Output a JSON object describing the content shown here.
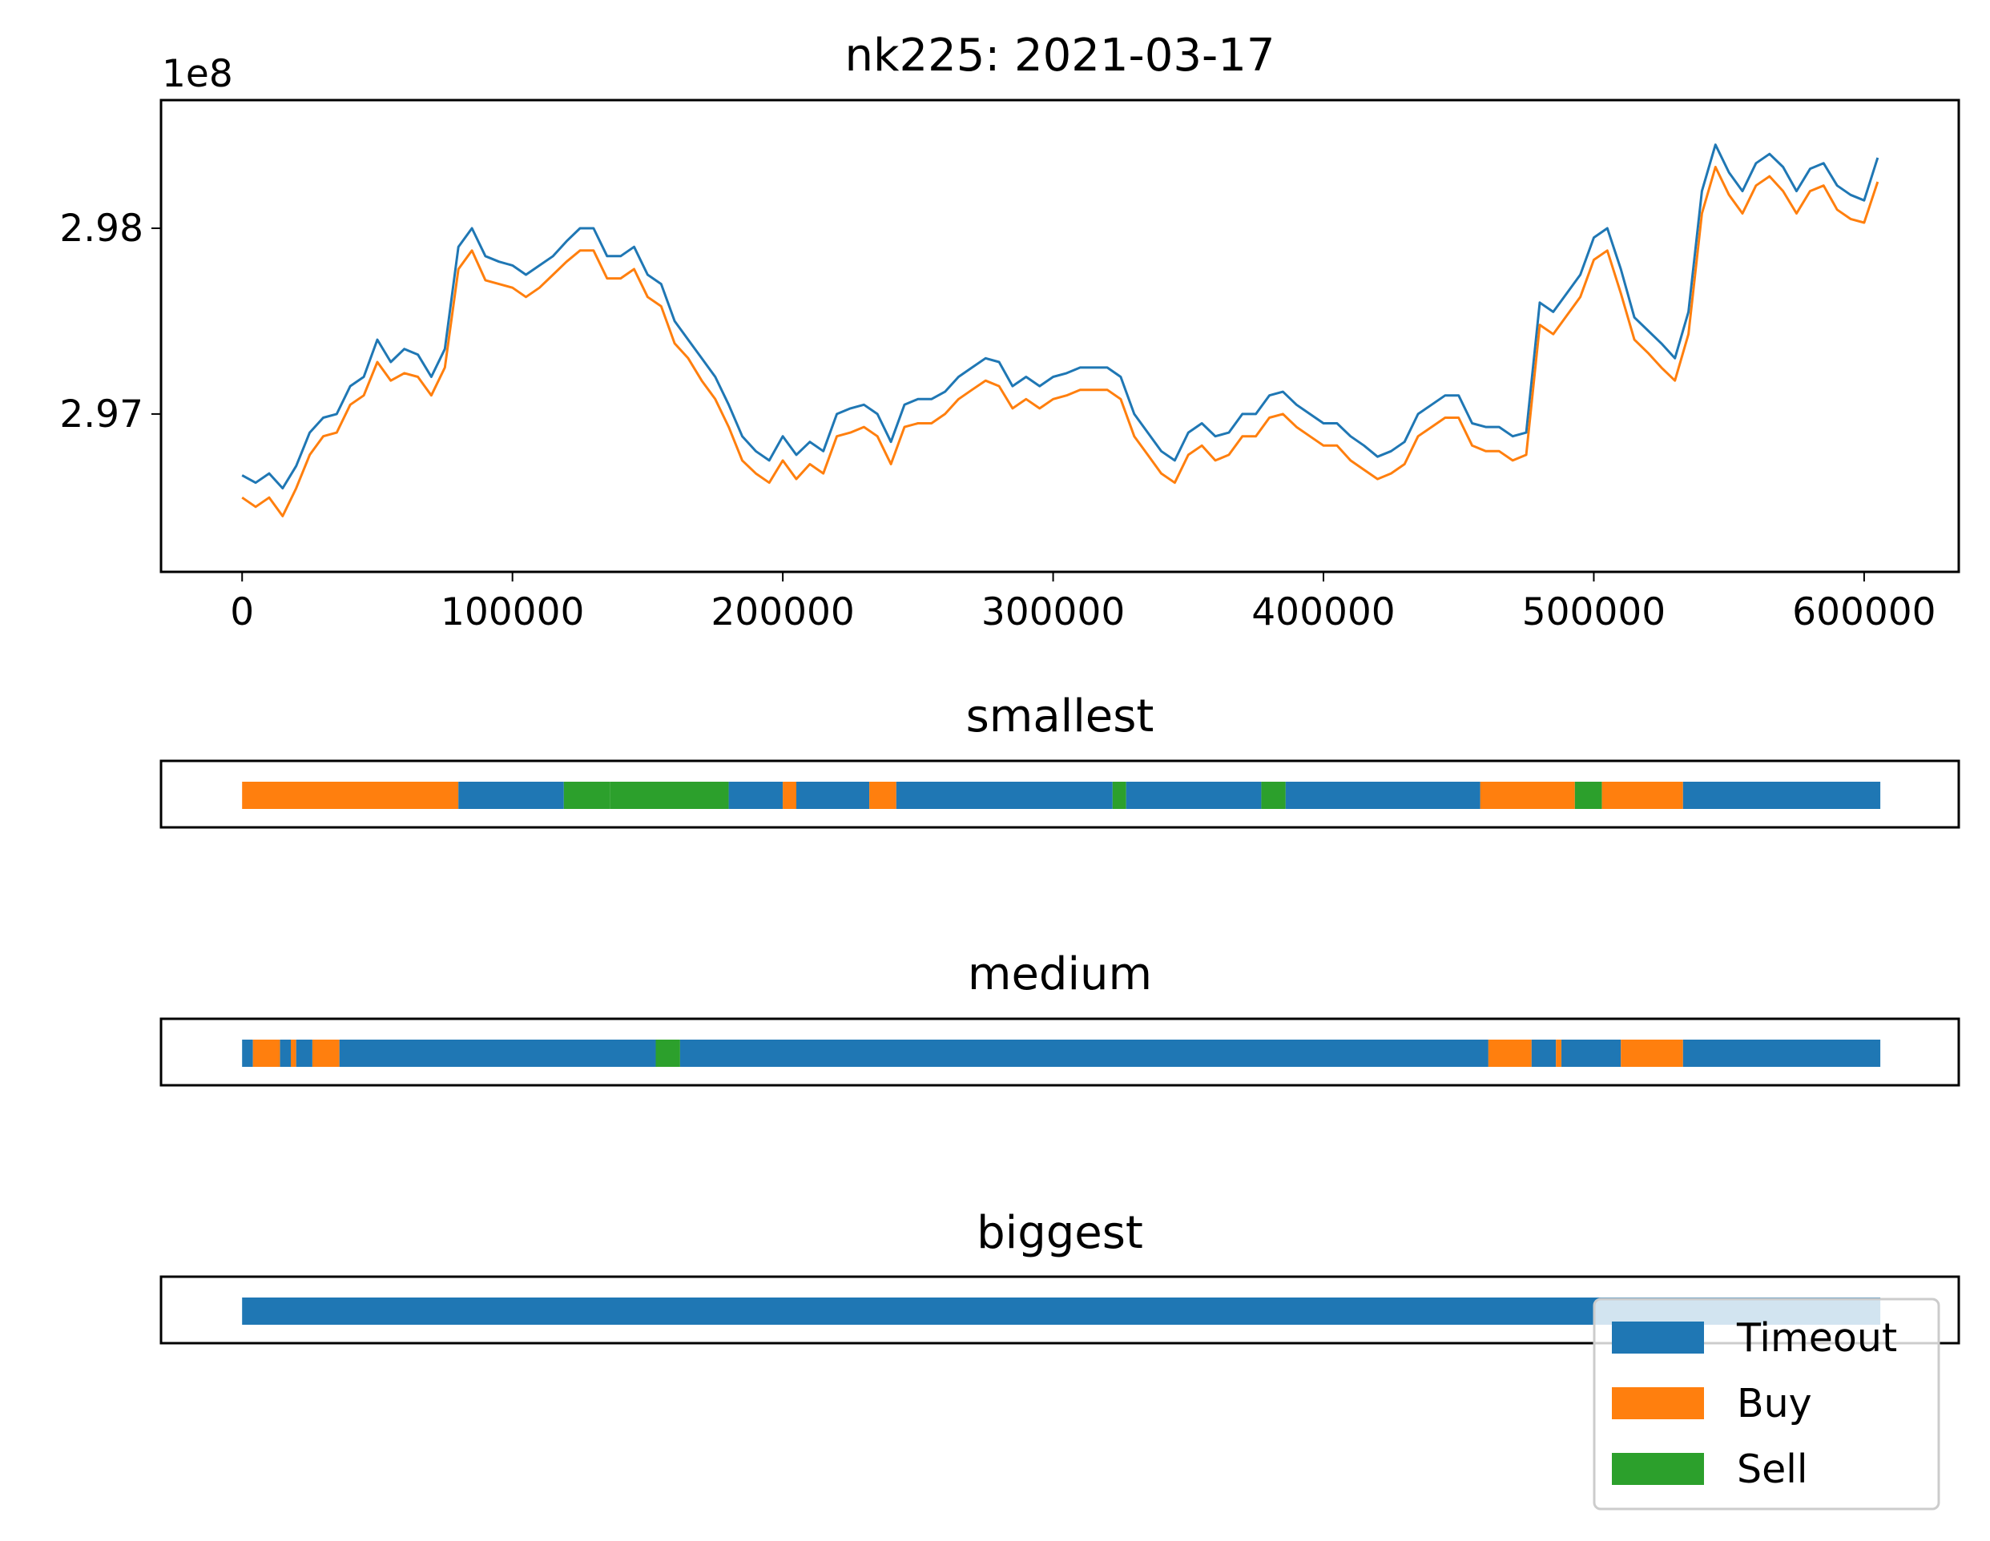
{
  "chart_data": [
    {
      "type": "line",
      "title": "nk225: 2021-03-17",
      "xlabel": "",
      "ylabel": "",
      "offset_text": "1e8",
      "xlim": [
        -30000,
        635000
      ],
      "ylim": [
        2.9615,
        2.9869
      ],
      "x_ticks": [
        0,
        100000,
        200000,
        300000,
        400000,
        500000,
        600000
      ],
      "x_tick_labels": [
        "0",
        "100000",
        "200000",
        "300000",
        "400000",
        "500000",
        "600000"
      ],
      "y_ticks": [
        2.97,
        2.98
      ],
      "y_tick_labels": [
        "2.97",
        "2.98"
      ],
      "grid": false,
      "series": [
        {
          "name": "",
          "color": "#1f77b4",
          "x": [
            0,
            5000,
            10000,
            15000,
            20000,
            25000,
            30000,
            35000,
            40000,
            45000,
            50000,
            55000,
            60000,
            65000,
            70000,
            75000,
            80000,
            85000,
            90000,
            95000,
            100000,
            105000,
            110000,
            115000,
            120000,
            125000,
            130000,
            135000,
            140000,
            145000,
            150000,
            155000,
            160000,
            165000,
            170000,
            175000,
            180000,
            185000,
            190000,
            195000,
            200000,
            205000,
            210000,
            215000,
            220000,
            225000,
            230000,
            235000,
            240000,
            245000,
            250000,
            255000,
            260000,
            265000,
            270000,
            275000,
            280000,
            285000,
            290000,
            295000,
            300000,
            305000,
            310000,
            315000,
            320000,
            325000,
            330000,
            335000,
            340000,
            345000,
            350000,
            355000,
            360000,
            365000,
            370000,
            375000,
            380000,
            385000,
            390000,
            395000,
            400000,
            405000,
            410000,
            415000,
            420000,
            425000,
            430000,
            435000,
            440000,
            445000,
            450000,
            455000,
            460000,
            465000,
            470000,
            475000,
            480000,
            485000,
            490000,
            495000,
            500000,
            505000,
            510000,
            515000,
            520000,
            525000,
            530000,
            535000,
            540000,
            545000,
            550000,
            555000,
            560000,
            565000,
            570000,
            575000,
            580000,
            585000,
            590000,
            595000,
            600000,
            605000
          ],
          "y": [
            2.9667,
            2.9663,
            2.9668,
            2.966,
            2.9672,
            2.969,
            2.9698,
            2.97,
            2.9715,
            2.972,
            2.974,
            2.9728,
            2.9735,
            2.9732,
            2.972,
            2.9735,
            2.979,
            2.98,
            2.9785,
            2.9782,
            2.978,
            2.9775,
            2.978,
            2.9785,
            2.9793,
            2.98,
            2.98,
            2.9785,
            2.9785,
            2.979,
            2.9775,
            2.977,
            2.975,
            2.974,
            2.973,
            2.972,
            2.9705,
            2.9688,
            2.968,
            2.9675,
            2.9688,
            2.9678,
            2.9685,
            2.968,
            2.97,
            2.9703,
            2.9705,
            2.97,
            2.9685,
            2.9705,
            2.9708,
            2.9708,
            2.9712,
            2.972,
            2.9725,
            2.973,
            2.9728,
            2.9715,
            2.972,
            2.9715,
            2.972,
            2.9722,
            2.9725,
            2.9725,
            2.9725,
            2.972,
            2.97,
            2.969,
            2.968,
            2.9675,
            2.969,
            2.9695,
            2.9688,
            2.969,
            2.97,
            2.97,
            2.971,
            2.9712,
            2.9705,
            2.97,
            2.9695,
            2.9695,
            2.9688,
            2.9683,
            2.9677,
            2.968,
            2.9685,
            2.97,
            2.9705,
            2.971,
            2.971,
            2.9695,
            2.9693,
            2.9693,
            2.9688,
            2.969,
            2.976,
            2.9755,
            2.9765,
            2.9775,
            2.9795,
            2.98,
            2.9778,
            2.9752,
            2.9745,
            2.9738,
            2.973,
            2.9755,
            2.982,
            2.9845,
            2.983,
            2.982,
            2.9835,
            2.984,
            2.9833,
            2.982,
            2.9832,
            2.9835,
            2.9823,
            2.9818,
            2.9815,
            2.9838
          ]
        },
        {
          "name": "",
          "color": "#ff7f0e",
          "x": [
            0,
            5000,
            10000,
            15000,
            20000,
            25000,
            30000,
            35000,
            40000,
            45000,
            50000,
            55000,
            60000,
            65000,
            70000,
            75000,
            80000,
            85000,
            90000,
            95000,
            100000,
            105000,
            110000,
            115000,
            120000,
            125000,
            130000,
            135000,
            140000,
            145000,
            150000,
            155000,
            160000,
            165000,
            170000,
            175000,
            180000,
            185000,
            190000,
            195000,
            200000,
            205000,
            210000,
            215000,
            220000,
            225000,
            230000,
            235000,
            240000,
            245000,
            250000,
            255000,
            260000,
            265000,
            270000,
            275000,
            280000,
            285000,
            290000,
            295000,
            300000,
            305000,
            310000,
            315000,
            320000,
            325000,
            330000,
            335000,
            340000,
            345000,
            350000,
            355000,
            360000,
            365000,
            370000,
            375000,
            380000,
            385000,
            390000,
            395000,
            400000,
            405000,
            410000,
            415000,
            420000,
            425000,
            430000,
            435000,
            440000,
            445000,
            450000,
            455000,
            460000,
            465000,
            470000,
            475000,
            480000,
            485000,
            490000,
            495000,
            500000,
            505000,
            510000,
            515000,
            520000,
            525000,
            530000,
            535000,
            540000,
            545000,
            550000,
            555000,
            560000,
            565000,
            570000,
            575000,
            580000,
            585000,
            590000,
            595000,
            600000,
            605000
          ],
          "y": [
            2.9655,
            2.965,
            2.9655,
            2.9645,
            2.966,
            2.9678,
            2.9688,
            2.969,
            2.9705,
            2.971,
            2.9728,
            2.9718,
            2.9722,
            2.972,
            2.971,
            2.9725,
            2.9778,
            2.9788,
            2.9772,
            2.977,
            2.9768,
            2.9763,
            2.9768,
            2.9775,
            2.9782,
            2.9788,
            2.9788,
            2.9773,
            2.9773,
            2.9778,
            2.9763,
            2.9758,
            2.9738,
            2.973,
            2.9718,
            2.9708,
            2.9693,
            2.9675,
            2.9668,
            2.9663,
            2.9675,
            2.9665,
            2.9673,
            2.9668,
            2.9688,
            2.969,
            2.9693,
            2.9688,
            2.9673,
            2.9693,
            2.9695,
            2.9695,
            2.97,
            2.9708,
            2.9713,
            2.9718,
            2.9715,
            2.9703,
            2.9708,
            2.9703,
            2.9708,
            2.971,
            2.9713,
            2.9713,
            2.9713,
            2.9708,
            2.9688,
            2.9678,
            2.9668,
            2.9663,
            2.9678,
            2.9683,
            2.9675,
            2.9678,
            2.9688,
            2.9688,
            2.9698,
            2.97,
            2.9693,
            2.9688,
            2.9683,
            2.9683,
            2.9675,
            2.967,
            2.9665,
            2.9668,
            2.9673,
            2.9688,
            2.9693,
            2.9698,
            2.9698,
            2.9683,
            2.968,
            2.968,
            2.9675,
            2.9678,
            2.9748,
            2.9743,
            2.9753,
            2.9763,
            2.9783,
            2.9788,
            2.9765,
            2.974,
            2.9733,
            2.9725,
            2.9718,
            2.9743,
            2.9808,
            2.9833,
            2.9818,
            2.9808,
            2.9823,
            2.9828,
            2.982,
            2.9808,
            2.982,
            2.9823,
            2.981,
            2.9805,
            2.9803,
            2.9825
          ]
        }
      ]
    },
    {
      "type": "bar",
      "title": "smallest",
      "xlim": [
        -30000,
        635000
      ],
      "segments": [
        {
          "start": 0,
          "end": 80000,
          "label": "Buy"
        },
        {
          "start": 80000,
          "end": 119000,
          "label": "Timeout"
        },
        {
          "start": 119000,
          "end": 136000,
          "label": "Sell"
        },
        {
          "start": 136000,
          "end": 180000,
          "label": "Sell"
        },
        {
          "start": 180000,
          "end": 200000,
          "label": "Timeout"
        },
        {
          "start": 200000,
          "end": 205000,
          "label": "Buy"
        },
        {
          "start": 205000,
          "end": 232000,
          "label": "Timeout"
        },
        {
          "start": 232000,
          "end": 242000,
          "label": "Buy"
        },
        {
          "start": 242000,
          "end": 322000,
          "label": "Timeout"
        },
        {
          "start": 322000,
          "end": 327000,
          "label": "Sell"
        },
        {
          "start": 327000,
          "end": 377000,
          "label": "Timeout"
        },
        {
          "start": 377000,
          "end": 386000,
          "label": "Sell"
        },
        {
          "start": 386000,
          "end": 458000,
          "label": "Timeout"
        },
        {
          "start": 458000,
          "end": 493000,
          "label": "Buy"
        },
        {
          "start": 493000,
          "end": 503000,
          "label": "Sell"
        },
        {
          "start": 503000,
          "end": 533000,
          "label": "Buy"
        },
        {
          "start": 533000,
          "end": 606000,
          "label": "Timeout"
        }
      ]
    },
    {
      "type": "bar",
      "title": "medium",
      "xlim": [
        -30000,
        635000
      ],
      "segments": [
        {
          "start": 0,
          "end": 4000,
          "label": "Timeout"
        },
        {
          "start": 4000,
          "end": 14000,
          "label": "Buy"
        },
        {
          "start": 14000,
          "end": 18000,
          "label": "Timeout"
        },
        {
          "start": 18000,
          "end": 20000,
          "label": "Buy"
        },
        {
          "start": 20000,
          "end": 26000,
          "label": "Timeout"
        },
        {
          "start": 26000,
          "end": 36000,
          "label": "Buy"
        },
        {
          "start": 36000,
          "end": 153000,
          "label": "Timeout"
        },
        {
          "start": 153000,
          "end": 162000,
          "label": "Sell"
        },
        {
          "start": 162000,
          "end": 461000,
          "label": "Timeout"
        },
        {
          "start": 461000,
          "end": 477000,
          "label": "Buy"
        },
        {
          "start": 477000,
          "end": 486000,
          "label": "Timeout"
        },
        {
          "start": 486000,
          "end": 488000,
          "label": "Buy"
        },
        {
          "start": 488000,
          "end": 510000,
          "label": "Timeout"
        },
        {
          "start": 510000,
          "end": 533000,
          "label": "Buy"
        },
        {
          "start": 533000,
          "end": 606000,
          "label": "Timeout"
        }
      ]
    },
    {
      "type": "bar",
      "title": "biggest",
      "xlim": [
        -30000,
        635000
      ],
      "segments": [
        {
          "start": 0,
          "end": 606000,
          "label": "Timeout"
        }
      ]
    }
  ],
  "legend": {
    "position": "lower right",
    "entries": [
      {
        "label": "Timeout",
        "color": "#1f77b4"
      },
      {
        "label": "Buy",
        "color": "#ff7f0e"
      },
      {
        "label": "Sell",
        "color": "#2ca02c"
      }
    ]
  }
}
